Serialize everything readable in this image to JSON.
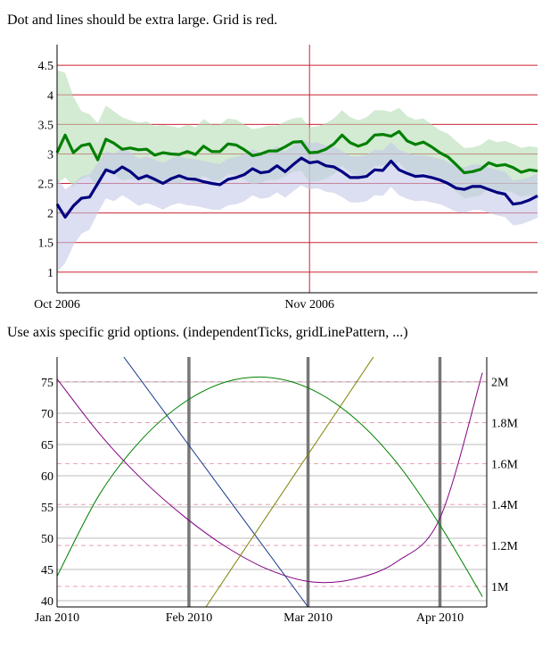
{
  "captions": {
    "chart1": "Dot and lines should be extra large. Grid is red.",
    "chart2": "Use axis specific grid options. (independentTicks, gridLinePattern, ...)"
  },
  "chart_data": [
    {
      "type": "line",
      "title": "Dot and lines should be extra large. Grid is red.",
      "x_ticks": [
        "Oct 2006",
        "Nov 2006"
      ],
      "y_ticks": [
        "1",
        "1.5",
        "2",
        "2.5",
        "3",
        "3.5",
        "4",
        "4.5"
      ],
      "ylim": [
        0.65,
        4.85
      ],
      "grid_color": "#cc2233",
      "x_dates": [
        "2006-10-01",
        "2006-10-02",
        "2006-10-03",
        "2006-10-04",
        "2006-10-05",
        "2006-10-06",
        "2006-10-07",
        "2006-10-08",
        "2006-10-09",
        "2006-10-10",
        "2006-10-11",
        "2006-10-12",
        "2006-10-13",
        "2006-10-14",
        "2006-10-15",
        "2006-10-16",
        "2006-10-17",
        "2006-10-18",
        "2006-10-19",
        "2006-10-20",
        "2006-10-21",
        "2006-10-22",
        "2006-10-23",
        "2006-10-24",
        "2006-10-25",
        "2006-10-26",
        "2006-10-27",
        "2006-10-28",
        "2006-10-29",
        "2006-10-30",
        "2006-10-31",
        "2006-11-01",
        "2006-11-02",
        "2006-11-03",
        "2006-11-04",
        "2006-11-05",
        "2006-11-06",
        "2006-11-07",
        "2006-11-08",
        "2006-11-09",
        "2006-11-10",
        "2006-11-11",
        "2006-11-12",
        "2006-11-13",
        "2006-11-14",
        "2006-11-15",
        "2006-11-16",
        "2006-11-17",
        "2006-11-18",
        "2006-11-19",
        "2006-11-20",
        "2006-11-21",
        "2006-11-22",
        "2006-11-23",
        "2006-11-24",
        "2006-11-25",
        "2006-11-26",
        "2006-11-27",
        "2006-11-28",
        "2006-11-29"
      ],
      "series": [
        {
          "color": "#008000",
          "band_color": "#b6dcb6",
          "values": [
            3.02,
            3.32,
            3.02,
            3.14,
            3.17,
            2.9,
            3.25,
            3.18,
            3.08,
            3.1,
            3.07,
            3.08,
            2.98,
            3.02,
            3.0,
            2.99,
            3.04,
            2.99,
            3.13,
            3.04,
            3.04,
            3.17,
            3.15,
            3.07,
            2.97,
            3.0,
            3.05,
            3.05,
            3.12,
            3.2,
            3.21,
            3.02,
            3.03,
            3.08,
            3.17,
            3.32,
            3.19,
            3.13,
            3.18,
            3.32,
            3.33,
            3.3,
            3.38,
            3.22,
            3.16,
            3.2,
            3.12,
            3.02,
            2.95,
            2.82,
            2.68,
            2.7,
            2.74,
            2.85,
            2.8,
            2.82,
            2.77,
            2.69,
            2.73,
            2.71
          ],
          "upper": [
            4.42,
            4.37,
            3.97,
            3.72,
            3.67,
            3.52,
            3.82,
            3.72,
            3.62,
            3.57,
            3.53,
            3.55,
            3.47,
            3.49,
            3.47,
            3.44,
            3.5,
            3.45,
            3.59,
            3.5,
            3.5,
            3.6,
            3.58,
            3.5,
            3.42,
            3.44,
            3.48,
            3.48,
            3.55,
            3.6,
            3.62,
            3.45,
            3.47,
            3.52,
            3.6,
            3.74,
            3.62,
            3.57,
            3.62,
            3.74,
            3.74,
            3.71,
            3.78,
            3.64,
            3.58,
            3.6,
            3.5,
            3.4,
            3.34,
            3.22,
            3.1,
            3.11,
            3.15,
            3.25,
            3.2,
            3.22,
            3.17,
            3.1,
            3.13,
            3.11
          ],
          "lower": [
            2.5,
            2.6,
            2.45,
            2.58,
            2.62,
            2.4,
            2.7,
            2.65,
            2.55,
            2.57,
            2.55,
            2.56,
            2.48,
            2.52,
            2.5,
            2.5,
            2.55,
            2.5,
            2.63,
            2.55,
            2.55,
            2.66,
            2.64,
            2.57,
            2.48,
            2.51,
            2.56,
            2.56,
            2.62,
            2.7,
            2.71,
            2.53,
            2.54,
            2.58,
            2.66,
            2.8,
            2.68,
            2.62,
            2.66,
            2.8,
            2.8,
            2.78,
            2.86,
            2.7,
            2.65,
            2.69,
            2.62,
            2.54,
            2.47,
            2.36,
            2.25,
            2.27,
            2.3,
            2.41,
            2.36,
            2.38,
            2.34,
            2.27,
            2.3,
            2.28
          ]
        },
        {
          "color": "#000080",
          "band_color": "#c4c8e8",
          "values": [
            2.15,
            1.93,
            2.12,
            2.25,
            2.27,
            2.5,
            2.73,
            2.68,
            2.78,
            2.7,
            2.58,
            2.63,
            2.57,
            2.5,
            2.58,
            2.63,
            2.58,
            2.57,
            2.53,
            2.5,
            2.48,
            2.57,
            2.6,
            2.65,
            2.75,
            2.68,
            2.7,
            2.8,
            2.7,
            2.82,
            2.93,
            2.85,
            2.87,
            2.8,
            2.78,
            2.7,
            2.6,
            2.6,
            2.62,
            2.73,
            2.72,
            2.88,
            2.73,
            2.67,
            2.62,
            2.63,
            2.6,
            2.56,
            2.5,
            2.42,
            2.4,
            2.45,
            2.45,
            2.4,
            2.35,
            2.32,
            2.15,
            2.17,
            2.22,
            2.29
          ],
          "upper": [
            2.6,
            2.4,
            2.5,
            2.62,
            2.65,
            2.85,
            3.05,
            3.0,
            3.1,
            3.03,
            2.92,
            2.96,
            2.9,
            2.85,
            2.92,
            2.96,
            2.92,
            2.91,
            2.88,
            2.85,
            2.83,
            2.92,
            2.95,
            3.0,
            3.08,
            3.02,
            3.04,
            3.13,
            3.04,
            3.15,
            3.25,
            3.18,
            3.2,
            3.14,
            3.12,
            3.05,
            2.96,
            2.96,
            2.98,
            3.07,
            3.06,
            3.2,
            3.07,
            3.02,
            2.97,
            2.98,
            2.95,
            2.92,
            2.86,
            2.79,
            2.77,
            2.82,
            2.82,
            2.77,
            2.73,
            2.7,
            2.55,
            2.57,
            2.61,
            2.67
          ],
          "lower": [
            1.0,
            1.15,
            1.45,
            1.65,
            1.72,
            2.0,
            2.25,
            2.2,
            2.3,
            2.22,
            2.12,
            2.17,
            2.12,
            2.06,
            2.13,
            2.17,
            2.13,
            2.12,
            2.09,
            2.06,
            2.05,
            2.13,
            2.15,
            2.2,
            2.3,
            2.24,
            2.26,
            2.35,
            2.26,
            2.37,
            2.47,
            2.4,
            2.42,
            2.36,
            2.34,
            2.27,
            2.18,
            2.18,
            2.2,
            2.3,
            2.29,
            2.44,
            2.3,
            2.24,
            2.2,
            2.21,
            2.18,
            2.15,
            2.09,
            2.02,
            2.0,
            2.05,
            2.05,
            2.0,
            1.96,
            1.93,
            1.79,
            1.81,
            1.86,
            1.92
          ]
        }
      ]
    },
    {
      "type": "line",
      "title": "Use axis specific grid options. (independentTicks, gridLinePattern, ...)",
      "x_ticks": [
        "Jan 2010",
        "Feb 2010",
        "Mar 2010",
        "Apr 2010"
      ],
      "y_ticks": [
        "40",
        "45",
        "50",
        "55",
        "60",
        "65",
        "70",
        "75"
      ],
      "y2_ticks": [
        "1M",
        "1.2M",
        "1.4M",
        "1.6M",
        "1.8M",
        "2M"
      ],
      "ylim": [
        39,
        79
      ],
      "y2lim": [
        0.9,
        2.12
      ],
      "xlim": [
        "2010-01-01",
        "2010-04-12"
      ],
      "series": [
        {
          "color": "#800080",
          "axis": "y",
          "x": [
            "2010-01-01",
            "2010-01-11",
            "2010-01-21",
            "2010-01-31",
            "2010-02-10",
            "2010-02-20",
            "2010-03-02",
            "2010-03-12",
            "2010-03-22",
            "2010-04-01",
            "2010-04-11"
          ],
          "values": [
            75.5,
            66.7,
            59.4,
            53.4,
            48.5,
            44.9,
            43.0,
            43.5,
            46.3,
            53.2,
            76.5
          ]
        },
        {
          "color": "#1a3b8f",
          "axis": "y",
          "x": [
            "2010-01-01",
            "2010-03-01"
          ],
          "values": [
            93.5,
            39.0
          ]
        },
        {
          "color": "#808000",
          "axis": "y",
          "x": [
            "2010-02-05",
            "2010-04-06"
          ],
          "values": [
            39.0,
            100.0
          ]
        },
        {
          "color": "#008000",
          "axis": "y2",
          "x": [
            "2010-01-01",
            "2010-01-11",
            "2010-01-21",
            "2010-01-31",
            "2010-02-10",
            "2010-02-20",
            "2010-03-02",
            "2010-03-12",
            "2010-03-22",
            "2010-04-01",
            "2010-04-11"
          ],
          "values": [
            1.05,
            1.45,
            1.72,
            1.9,
            2.0,
            2.02,
            1.96,
            1.82,
            1.6,
            1.3,
            0.95
          ]
        }
      ]
    }
  ]
}
